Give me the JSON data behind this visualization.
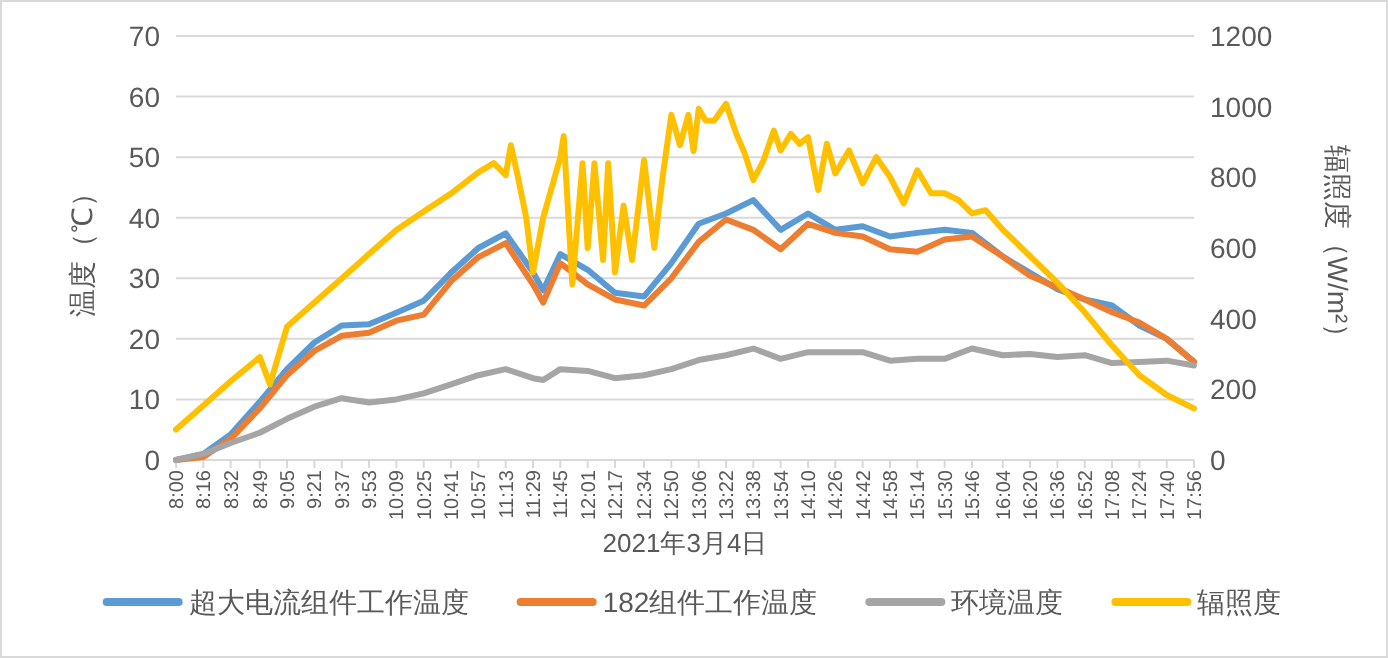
{
  "chart_data": {
    "type": "line",
    "xlabel": "2021年3月4日",
    "ylabel": "温度（℃）",
    "y2label": "辐照度（W/m²）",
    "x": [
      8.0,
      8.267,
      8.533,
      8.817,
      9.083,
      9.35,
      9.617,
      9.883,
      10.15,
      10.417,
      10.683,
      10.95,
      11.217,
      11.483,
      11.583,
      11.75,
      12.017,
      12.283,
      12.567,
      12.833,
      13.1,
      13.367,
      13.633,
      13.9,
      14.167,
      14.433,
      14.7,
      14.967,
      15.233,
      15.5,
      15.767,
      16.067,
      16.333,
      16.6,
      16.867,
      17.133,
      17.4,
      17.667,
      17.933
    ],
    "series": [
      {
        "name": "超大电流组件工作温度",
        "color": "#5b9bd5",
        "values": [
          0,
          1,
          4.2,
          9.6,
          15,
          19.4,
          22.2,
          22.4,
          24.3,
          26.3,
          30.9,
          35,
          37.4,
          31,
          28,
          34,
          31.4,
          27.6,
          27,
          32.5,
          39,
          40.7,
          42.9,
          38,
          40.7,
          38,
          38.6,
          36.9,
          37.5,
          38,
          37.5,
          33.6,
          30.9,
          28.2,
          26.5,
          25.5,
          22.2,
          20,
          16.2
        ]
      },
      {
        "name": "182组件工作温度",
        "color": "#ed7d31",
        "values": [
          0,
          0.5,
          3.5,
          8.5,
          14,
          18,
          20.5,
          21,
          23,
          24,
          29.5,
          33.5,
          35.8,
          29,
          26,
          32.5,
          29,
          26.5,
          25.5,
          30,
          36,
          39.7,
          38,
          34.8,
          39,
          37.5,
          36.9,
          34.8,
          34.4,
          36.4,
          36.9,
          33.6,
          30.4,
          28.5,
          26.5,
          24.4,
          22.7,
          20,
          16.2
        ]
      },
      {
        "name": "环境温度",
        "color": "#a5a5a5",
        "values": [
          0,
          1,
          2.8,
          4.5,
          6.8,
          8.8,
          10.2,
          9.5,
          10,
          11,
          12.5,
          14,
          15,
          13.5,
          13.2,
          15,
          14.7,
          13.5,
          14,
          15,
          16.5,
          17.3,
          18.4,
          16.7,
          17.8,
          17.8,
          17.8,
          16.4,
          16.7,
          16.7,
          18.4,
          17.3,
          17.5,
          17,
          17.3,
          16,
          16.2,
          16.4,
          15.6
        ]
      },
      {
        "name": "辐照度",
        "color": "#ffc000",
        "axis": "y2",
        "x": [
          8.0,
          8.267,
          8.533,
          8.817,
          8.917,
          9.083,
          9.35,
          9.617,
          9.883,
          10.15,
          10.417,
          10.683,
          10.95,
          11.1,
          11.217,
          11.267,
          11.333,
          11.417,
          11.483,
          11.583,
          11.75,
          11.783,
          11.867,
          11.967,
          12.017,
          12.083,
          12.167,
          12.217,
          12.283,
          12.367,
          12.45,
          12.567,
          12.667,
          12.75,
          12.833,
          12.917,
          13.0,
          13.05,
          13.1,
          13.167,
          13.25,
          13.367,
          13.467,
          13.55,
          13.633,
          13.733,
          13.833,
          13.9,
          14.0,
          14.083,
          14.167,
          14.267,
          14.35,
          14.433,
          14.567,
          14.7,
          14.833,
          14.967,
          15.1,
          15.233,
          15.367,
          15.5,
          15.633,
          15.767,
          15.9,
          16.067,
          16.333,
          16.6,
          16.867,
          17.133,
          17.4,
          17.667,
          17.933
        ],
        "values": [
          86,
          154,
          223,
          291,
          214,
          377,
          446,
          514,
          583,
          651,
          703,
          754,
          814,
          840,
          806,
          891,
          806,
          686,
          531,
          686,
          857,
          917,
          497,
          840,
          600,
          840,
          566,
          840,
          531,
          720,
          566,
          849,
          600,
          806,
          977,
          891,
          977,
          874,
          994,
          961,
          960,
          1008,
          923,
          867,
          792,
          848,
          932,
          876,
          923,
          895,
          914,
          764,
          895,
          811,
          876,
          783,
          857,
          801,
          726,
          820,
          755,
          755,
          736,
          698,
          707,
          652,
          577,
          502,
          418,
          324,
          240,
          184,
          146
        ]
      }
    ],
    "xlim": [
      8.0,
      17.933
    ],
    "xticks": [
      {
        "value": 8.0,
        "label": "8:00"
      },
      {
        "value": 8.267,
        "label": "8:16"
      },
      {
        "value": 8.533,
        "label": "8:32"
      },
      {
        "value": 8.817,
        "label": "8:49"
      },
      {
        "value": 9.083,
        "label": "9:05"
      },
      {
        "value": 9.35,
        "label": "9:21"
      },
      {
        "value": 9.617,
        "label": "9:37"
      },
      {
        "value": 9.883,
        "label": "9:53"
      },
      {
        "value": 10.15,
        "label": "10:09"
      },
      {
        "value": 10.417,
        "label": "10:25"
      },
      {
        "value": 10.683,
        "label": "10:41"
      },
      {
        "value": 10.95,
        "label": "10:57"
      },
      {
        "value": 11.217,
        "label": "11:13"
      },
      {
        "value": 11.483,
        "label": "11:29"
      },
      {
        "value": 11.75,
        "label": "11:45"
      },
      {
        "value": 12.017,
        "label": "12:01"
      },
      {
        "value": 12.283,
        "label": "12:17"
      },
      {
        "value": 12.567,
        "label": "12:34"
      },
      {
        "value": 12.833,
        "label": "12:50"
      },
      {
        "value": 13.1,
        "label": "13:06"
      },
      {
        "value": 13.367,
        "label": "13:22"
      },
      {
        "value": 13.633,
        "label": "13:38"
      },
      {
        "value": 13.9,
        "label": "13:54"
      },
      {
        "value": 14.167,
        "label": "14:10"
      },
      {
        "value": 14.433,
        "label": "14:26"
      },
      {
        "value": 14.7,
        "label": "14:42"
      },
      {
        "value": 14.967,
        "label": "14:58"
      },
      {
        "value": 15.233,
        "label": "15:14"
      },
      {
        "value": 15.5,
        "label": "15:30"
      },
      {
        "value": 15.767,
        "label": "15:46"
      },
      {
        "value": 16.067,
        "label": "16:04"
      },
      {
        "value": 16.333,
        "label": "16:20"
      },
      {
        "value": 16.6,
        "label": "16:36"
      },
      {
        "value": 16.867,
        "label": "16:52"
      },
      {
        "value": 17.133,
        "label": "17:08"
      },
      {
        "value": 17.4,
        "label": "17:24"
      },
      {
        "value": 17.667,
        "label": "17:40"
      },
      {
        "value": 17.933,
        "label": "17:56"
      }
    ],
    "ylim": [
      0,
      70
    ],
    "yticks": [
      0,
      10,
      20,
      30,
      40,
      50,
      60,
      70
    ],
    "y2lim": [
      0,
      1200
    ],
    "y2ticks": [
      0,
      200,
      400,
      600,
      800,
      1000,
      1200
    ],
    "grid": "y",
    "legend": "bottom",
    "marker": "none",
    "line_style": "solid"
  }
}
